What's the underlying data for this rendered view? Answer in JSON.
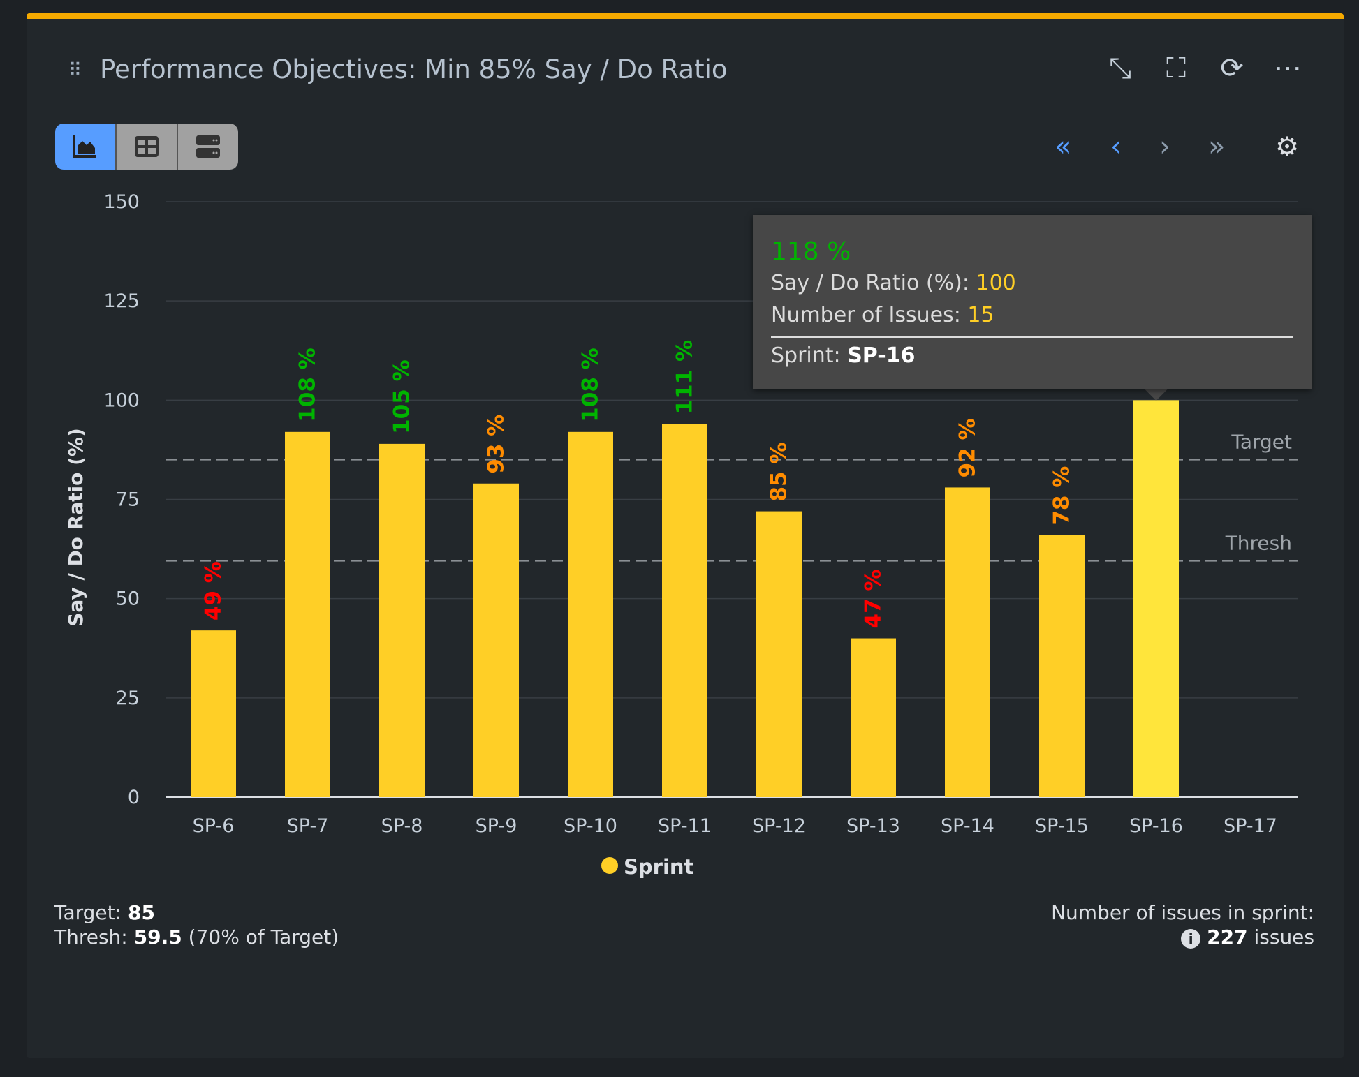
{
  "header": {
    "title": "Performance Objectives: Min 85% Say / Do Ratio",
    "icons": [
      "drag-handle-icon",
      "collapse-icon",
      "fullscreen-icon",
      "refresh-icon",
      "more-icon"
    ]
  },
  "view_toggle": [
    "chart-view",
    "table-view",
    "list-view"
  ],
  "nav": [
    "first-page",
    "previous-page",
    "next-page",
    "last-page",
    "settings"
  ],
  "colors": {
    "bar": "#ffcf26",
    "bar_hover": "#ffe53b",
    "good": "#00b400",
    "warn": "#ff8c00",
    "bad": "#ff0000",
    "accent": "#f5a900"
  },
  "chart_data": {
    "type": "bar",
    "categories": [
      "SP-6",
      "SP-7",
      "SP-8",
      "SP-9",
      "SP-10",
      "SP-11",
      "SP-12",
      "SP-13",
      "SP-14",
      "SP-15",
      "SP-16",
      "SP-17"
    ],
    "series": [
      {
        "name": "Sprint",
        "values": [
          42,
          92,
          89,
          79,
          92,
          94,
          72,
          40,
          78,
          66,
          100,
          null
        ]
      }
    ],
    "data_labels": [
      "49 %",
      "108 %",
      "105 %",
      "93 %",
      "108 %",
      "111 %",
      "85 %",
      "47 %",
      "92 %",
      "78 %",
      "118 %",
      ""
    ],
    "ylabel": "Say / Do Ratio (%)",
    "ylim": [
      0,
      150
    ],
    "yticks": [
      0,
      25,
      50,
      75,
      100,
      125,
      150
    ],
    "reference_lines": [
      {
        "label": "Target",
        "value": 85
      },
      {
        "label": "Thresh",
        "value": 59.5
      }
    ],
    "legend": "bottom",
    "grid": true
  },
  "tooltip": {
    "headline": "118 %",
    "ratio_label": "Say / Do Ratio (%):",
    "ratio_value": "100",
    "issues_label": "Number of Issues:",
    "issues_value": "15",
    "sprint_label": "Sprint:",
    "sprint_value": "SP-16"
  },
  "footer": {
    "target_label": "Target:",
    "target_value": "85",
    "thresh_label": "Thresh:",
    "thresh_value": "59.5",
    "thresh_note": "(70% of Target)",
    "issues_label": "Number of issues in sprint:",
    "issues_count": "227",
    "issues_unit": "issues"
  }
}
